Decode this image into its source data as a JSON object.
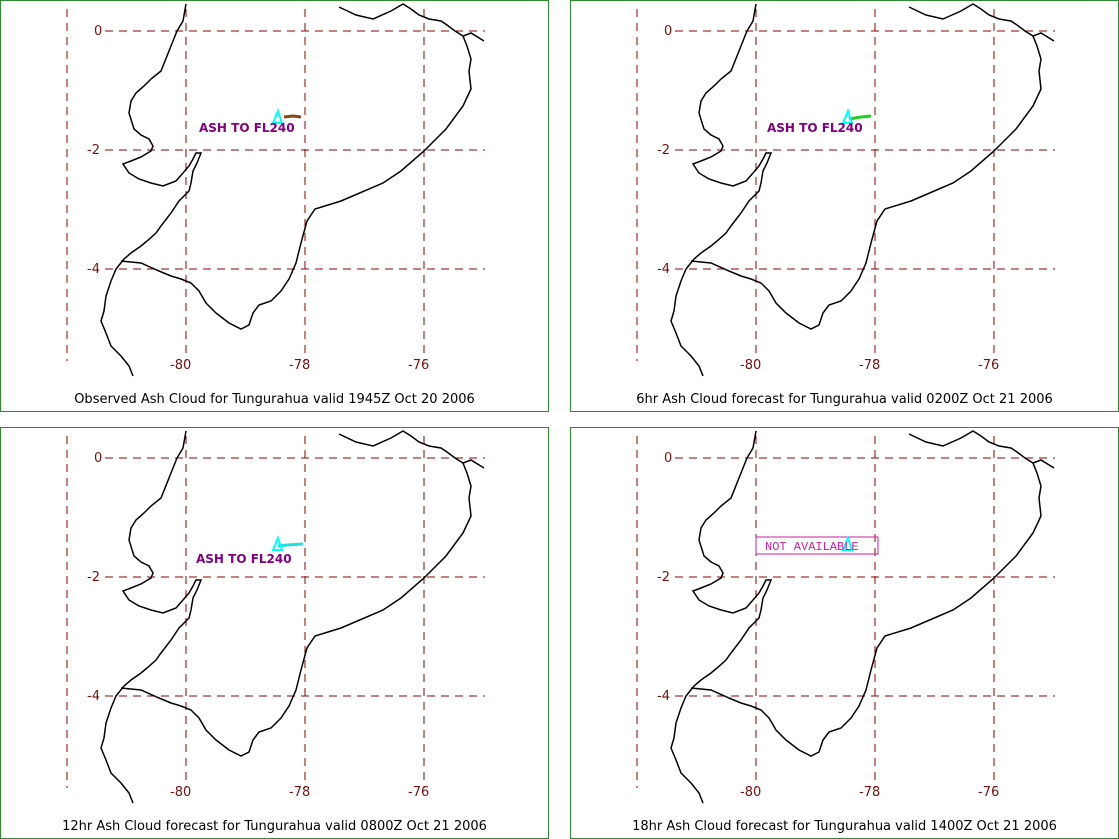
{
  "colors": {
    "grid": "#8b0000",
    "coast": "#000000",
    "label": "#800080",
    "not_available": "#cc1fa0",
    "panel_border": "#2e8b2e",
    "volcano_marker": "#00ffff"
  },
  "panels": [
    {
      "caption": "Observed Ash Cloud for Tungurahua valid 1945Z Oct 20 2006",
      "label": "ASH TO FL240",
      "plume_color": "#8b4513",
      "lat_ticks": [
        "0",
        "-2",
        "-4"
      ],
      "lon_ticks": [
        "-80",
        "-78",
        "-76"
      ]
    },
    {
      "caption": "6hr Ash Cloud forecast for Tungurahua valid 0200Z Oct 21 2006",
      "label": "ASH TO FL240",
      "plume_color": "#22cc22",
      "lat_ticks": [
        "0",
        "-2",
        "-4"
      ],
      "lon_ticks": [
        "-80",
        "-78",
        "-76"
      ]
    },
    {
      "caption": "12hr Ash Cloud forecast for Tungurahua valid 0800Z Oct 21 2006",
      "label": "ASH TO FL240",
      "plume_color": "#22dddd",
      "lat_ticks": [
        "0",
        "-2",
        "-4"
      ],
      "lon_ticks": [
        "-80",
        "-78",
        "-76"
      ]
    },
    {
      "caption": "18hr Ash Cloud forecast for Tungurahua valid 1400Z Oct 21 2006",
      "label": "NOT AVAILABLE",
      "plume_color": "",
      "lat_ticks": [
        "0",
        "-2",
        "-4"
      ],
      "lon_ticks": [
        "-80",
        "-78",
        "-76"
      ]
    }
  ]
}
